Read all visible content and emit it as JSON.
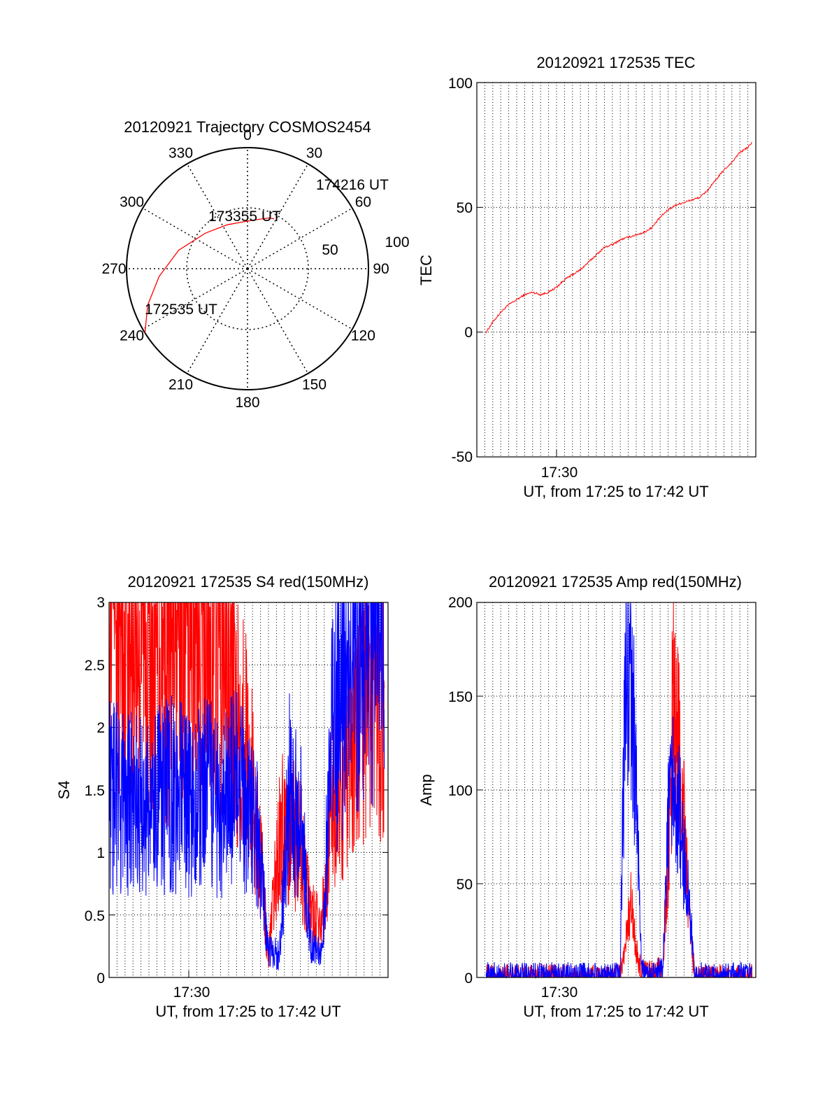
{
  "colors": {
    "red": "#ff0000",
    "blue": "#0000ff",
    "axis": "#000000",
    "grid": "#000000",
    "background": "#ffffff"
  },
  "chart_data": [
    {
      "type": "polar",
      "title": "20120921 Trajectory COSMOS2454",
      "angle_labels": [
        "0",
        "30",
        "60",
        "90",
        "120",
        "150",
        "180",
        "210",
        "240",
        "270",
        "300",
        "330"
      ],
      "radius_labels": [
        "50",
        "100"
      ],
      "series": [
        {
          "color": "#ff0000",
          "points_az_el": [
            [
              238,
              0
            ],
            [
              250,
              11
            ],
            [
              265,
              24
            ],
            [
              285,
              37
            ],
            [
              310,
              49
            ],
            [
              335,
              54
            ],
            [
              355,
              55
            ],
            [
              10,
              53
            ],
            [
              23,
              49
            ],
            [
              28,
              48
            ]
          ]
        }
      ],
      "annotations": [
        {
          "text": "172535 UT",
          "az": 238,
          "el": 0
        },
        {
          "text": "173355 UT",
          "az": 315,
          "el": 47
        },
        {
          "text": "174216 UT",
          "az": 28,
          "el": 48
        }
      ]
    },
    {
      "type": "line",
      "title": "20120921 172535 TEC",
      "xlabel": "UT, from 17:25 to 17:42 UT",
      "ylabel": "TEC",
      "x_tick_label": "17:30",
      "xlim": [
        "17:25:00",
        "17:42:30"
      ],
      "ylim": [
        -50,
        100
      ],
      "yticks": [
        "-50",
        "0",
        "50",
        "100"
      ],
      "grid": true,
      "series": [
        {
          "color": "#ff0000",
          "time": [
            "17:25:35",
            "17:26:00",
            "17:26:30",
            "17:27:00",
            "17:27:30",
            "17:28:00",
            "17:28:30",
            "17:29:00",
            "17:29:30",
            "17:30:00",
            "17:30:30",
            "17:31:00",
            "17:31:30",
            "17:32:00",
            "17:32:30",
            "17:33:00",
            "17:33:30",
            "17:34:00",
            "17:34:30",
            "17:35:00",
            "17:35:30",
            "17:36:00",
            "17:36:30",
            "17:37:00",
            "17:37:30",
            "17:38:00",
            "17:38:30",
            "17:39:00",
            "17:39:30",
            "17:40:00",
            "17:40:30",
            "17:41:00",
            "17:41:30",
            "17:42:00",
            "17:42:16"
          ],
          "values": [
            0,
            4,
            8,
            11,
            13,
            15,
            16,
            15,
            16,
            18,
            21,
            23,
            25,
            28,
            31,
            34,
            35,
            37,
            38,
            39,
            40,
            42,
            46,
            49,
            51,
            52,
            53,
            54,
            57,
            61,
            65,
            68,
            72,
            74,
            76
          ]
        }
      ]
    },
    {
      "type": "line",
      "title": "20120921 172535 S4 red(150MHz)",
      "xlabel": "UT, from 17:25 to 17:42 UT",
      "ylabel": "S4",
      "x_tick_label": "17:30",
      "xlim": [
        "17:25:00",
        "17:42:30"
      ],
      "ylim": [
        0,
        3
      ],
      "yticks": [
        "0",
        "0.5",
        "1",
        "1.5",
        "2",
        "2.5",
        "3"
      ],
      "grid": true,
      "series": [
        {
          "color": "#ff0000",
          "time": [
            "17:25:00",
            "17:26:00",
            "17:27:00",
            "17:28:00",
            "17:29:00",
            "17:30:00",
            "17:31:00",
            "17:32:00",
            "17:33:00",
            "17:33:40",
            "17:34:20",
            "17:35:00",
            "17:35:40",
            "17:36:20",
            "17:37:00",
            "17:37:40",
            "17:38:20",
            "17:39:00",
            "17:39:40",
            "17:40:20",
            "17:41:00",
            "17:41:40",
            "17:42:16"
          ],
          "values": [
            3.0,
            3.0,
            2.9,
            2.6,
            2.7,
            2.8,
            2.9,
            2.7,
            2.2,
            1.8,
            1.2,
            0.15,
            1.1,
            1.3,
            1.0,
            0.5,
            0.4,
            1.4,
            1.5,
            1.8,
            2.2,
            2.6,
            2.0
          ]
        },
        {
          "color": "#0000ff",
          "time": [
            "17:25:00",
            "17:26:00",
            "17:27:00",
            "17:28:00",
            "17:29:00",
            "17:30:00",
            "17:31:00",
            "17:32:00",
            "17:33:00",
            "17:33:40",
            "17:34:20",
            "17:35:00",
            "17:35:40",
            "17:36:20",
            "17:37:00",
            "17:37:40",
            "17:38:20",
            "17:39:00",
            "17:39:40",
            "17:40:20",
            "17:41:00",
            "17:41:40",
            "17:42:16"
          ],
          "values": [
            1.45,
            1.4,
            1.35,
            1.4,
            1.5,
            1.35,
            1.45,
            1.4,
            1.5,
            1.4,
            1.1,
            0.2,
            0.18,
            1.5,
            1.3,
            0.25,
            0.2,
            2.0,
            2.3,
            2.6,
            2.9,
            3.0,
            2.8
          ]
        }
      ]
    },
    {
      "type": "line",
      "title": "20120921 172535 Amp red(150MHz)",
      "xlabel": "UT, from 17:25 to 17:42 UT",
      "ylabel": "Amp",
      "x_tick_label": "17:30",
      "xlim": [
        "17:25:00",
        "17:42:30"
      ],
      "ylim": [
        0,
        200
      ],
      "yticks": [
        "0",
        "50",
        "100",
        "150",
        "200"
      ],
      "grid": true,
      "series": [
        {
          "color": "#ff0000",
          "time": [
            "17:25:35",
            "17:32:00",
            "17:34:00",
            "17:34:20",
            "17:34:40",
            "17:35:00",
            "17:35:20",
            "17:36:00",
            "17:36:40",
            "17:37:00",
            "17:37:20",
            "17:37:40",
            "17:38:00",
            "17:38:20",
            "17:38:40",
            "17:42:16"
          ],
          "values": [
            0,
            0,
            0,
            20,
            40,
            15,
            2,
            2,
            5,
            60,
            150,
            120,
            80,
            30,
            0,
            0
          ]
        },
        {
          "color": "#0000ff",
          "time": [
            "17:25:35",
            "17:30:00",
            "17:33:30",
            "17:34:00",
            "17:34:20",
            "17:34:40",
            "17:35:00",
            "17:35:20",
            "17:36:00",
            "17:36:40",
            "17:37:00",
            "17:37:20",
            "17:37:40",
            "17:38:00",
            "17:38:20",
            "17:38:40",
            "17:42:16"
          ],
          "values": [
            1,
            1,
            1,
            3,
            170,
            175,
            100,
            3,
            1,
            5,
            80,
            100,
            90,
            60,
            40,
            1,
            1
          ]
        }
      ]
    }
  ]
}
